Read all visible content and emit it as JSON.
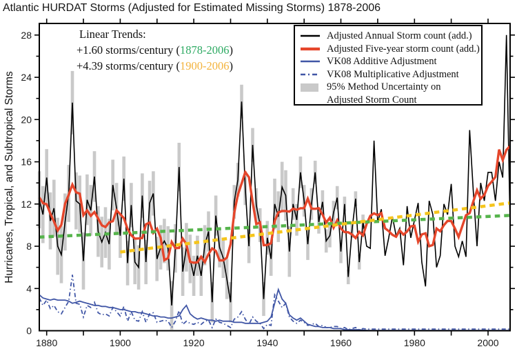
{
  "title": "Atlantic HURDAT Storms (Adjusted for Estimated Missing Storms) 1878-2006",
  "y_axis_label": "Hurricanes, Tropical, and Subtropical Storms",
  "annotation": {
    "heading": "Linear Trends:",
    "trends": [
      {
        "text": "+1.60 storms/century ",
        "open": "(",
        "range": "1878-2006",
        "close": ")",
        "range_color": "#2eaa63"
      },
      {
        "text": "+4.39 storms/century ",
        "open": "(",
        "range": "1900-2006",
        "close": ")",
        "range_color": "#f3b33d"
      }
    ]
  },
  "legend": {
    "items": [
      {
        "label": "Adjusted Annual Storm count (add.)",
        "style": "line",
        "color": "#000000"
      },
      {
        "label": "Adjusted Five-year storm count (add.)",
        "style": "line-thick",
        "color": "#e5462b"
      },
      {
        "label": "VK08 Additive Adjustment",
        "style": "line",
        "color": "#4056a6"
      },
      {
        "label": "VK08 Multiplicative Adjustment",
        "style": "line-dashed",
        "color": "#4056a6"
      },
      {
        "label": "95% Method Uncertainty on",
        "label2": "Adjusted Storm Count",
        "style": "box",
        "color": "#c9c9c9"
      }
    ]
  },
  "chart_data": {
    "type": "line",
    "title": "Atlantic HURDAT Storms (Adjusted for Estimated Missing Storms) 1878-2006",
    "xlabel": "",
    "ylabel": "Hurricanes, Tropical, and Subtropical Storms",
    "x_range": [
      1878,
      2006
    ],
    "ylim": [
      0,
      29.1
    ],
    "grid": false,
    "legend_position": "top-right-inside",
    "axes": {
      "x_ticks": [
        1880,
        1890,
        1900,
        1910,
        1920,
        1930,
        1940,
        1950,
        1960,
        1970,
        1980,
        1990,
        2000
      ],
      "x_tick_labels": [
        1880,
        1900,
        1920,
        1940,
        1960,
        1980,
        2000
      ],
      "y_tick_labels": [
        0,
        4,
        8,
        12,
        16,
        20,
        24,
        28
      ],
      "y_major_step": 4,
      "y_minor_step": 2
    },
    "colors": {
      "annual": "#000000",
      "five_year": "#e5462b",
      "vk08": "#4056a6",
      "trend_full": "#56b44c",
      "trend_1900": "#f5c51d",
      "uncertainty": "#c9c9c9"
    },
    "series": {
      "annual": [
        12.4,
        11.0,
        14.5,
        10.4,
        11.6,
        8.0,
        7.2,
        10.3,
        13.0,
        21.6,
        12.3,
        12.0,
        6.6,
        12.4,
        11.4,
        14.6,
        9.4,
        8.4,
        9.3,
        8.2,
        13.8,
        11.6,
        9.0,
        14.4,
        6.4,
        11.9,
        6.5,
        6.0,
        12.8,
        6.5,
        12.1,
        13.0,
        6.8,
        7.9,
        8.5,
        7.8,
        2.4,
        7.8,
        15.5,
        5.6,
        7.9,
        6.8,
        5.2,
        7.1,
        5.2,
        8.1,
        9.4,
        2.7,
        10.9,
        7.9,
        6.9,
        4.9,
        2.7,
        12.2,
        14.3,
        21.7,
        13.5,
        8.0,
        17.6,
        11.9,
        10.0,
        3.0,
        8.8,
        6.8,
        12.0,
        10.8,
        13.6,
        12.8,
        7.5,
        12.0,
        10.5,
        15.0,
        12.3,
        8.2,
        12.0,
        15.0,
        10.3,
        12.2,
        8.5,
        9.0,
        11.2,
        12.6,
        7.5,
        12.0,
        5.1,
        9.5,
        12.5,
        6.5,
        10.3,
        8.0,
        7.8,
        18.0,
        10.3,
        11.5,
        7.1,
        8.8,
        10.8,
        9.0,
        9.7,
        6.2,
        11.8,
        8.8,
        10.5,
        12.1,
        6.5,
        4.2,
        12.3,
        11.0,
        6.0,
        7.1,
        12.0,
        11.0,
        13.9,
        8.0,
        7.0,
        8.5,
        7.0,
        19.0,
        13.2,
        8.0,
        14.0,
        12.3,
        15.0,
        15.0,
        12.3,
        16.0,
        14.5,
        28.0,
        10.0
      ],
      "five_year_note": "centered 5-year running mean of annual (computed)",
      "vk08_additive": [
        3.4,
        3.1,
        3.0,
        2.9,
        3.0,
        2.9,
        2.9,
        2.9,
        2.8,
        2.6,
        2.7,
        2.8,
        2.7,
        2.6,
        2.5,
        2.4,
        2.4,
        2.3,
        2.3,
        2.2,
        2.2,
        2.1,
        2.0,
        2.0,
        1.9,
        1.8,
        1.8,
        1.7,
        1.7,
        1.6,
        1.5,
        1.4,
        1.4,
        1.3,
        1.3,
        1.2,
        1.2,
        1.3,
        1.4,
        2.0,
        2.4,
        1.6,
        1.3,
        1.1,
        1.2,
        1.1,
        1.0,
        1.0,
        0.9,
        1.0,
        0.9,
        0.9,
        0.9,
        0.8,
        0.8,
        0.8,
        0.7,
        0.7,
        0.7,
        0.7,
        0.7,
        0.8,
        0.9,
        1.3,
        2.6,
        3.9,
        3.0,
        2.6,
        1.5,
        1.2,
        1.0,
        1.2,
        0.9,
        0.6,
        0.5,
        0.4,
        0.4,
        0.3,
        0.3,
        0.3,
        0.2,
        0.2,
        0.2,
        0.1,
        0.1,
        0.1,
        0.1,
        0.1,
        0.05,
        0.03,
        0.02,
        0.02,
        0.02,
        0.02,
        0.02,
        0.02,
        0.02,
        0.02,
        0.02,
        0.02,
        0.02,
        0.02,
        0.02,
        0.02,
        0.02,
        0.02,
        0.02,
        0.02,
        0.02,
        0.02,
        0.02,
        0.02,
        0.02,
        0.02,
        0.02,
        0.02,
        0.02,
        0.02,
        0.02,
        0.02,
        0.02,
        0.02,
        0.02,
        0.02,
        0.02,
        0.02,
        0.02,
        0.02,
        0.02
      ],
      "vk08_multiplicative": [
        3.1,
        2.4,
        2.9,
        2.1,
        2.4,
        1.8,
        1.6,
        2.2,
        2.8,
        5.3,
        2.6,
        2.5,
        1.3,
        2.4,
        2.2,
        2.7,
        1.7,
        1.5,
        1.6,
        1.4,
        2.2,
        1.8,
        1.4,
        2.3,
        0.9,
        1.8,
        1.0,
        0.9,
        1.8,
        0.8,
        1.6,
        1.7,
        0.8,
        0.9,
        1.0,
        0.9,
        0.3,
        0.9,
        1.9,
        0.6,
        0.9,
        0.7,
        0.6,
        0.8,
        0.6,
        0.9,
        1.0,
        0.3,
        1.1,
        0.8,
        0.7,
        0.5,
        0.3,
        1.1,
        1.3,
        1.8,
        1.1,
        0.6,
        1.3,
        0.9,
        0.7,
        0.2,
        0.6,
        0.5,
        3.4,
        2.8,
        2.2,
        2.6,
        1.3,
        0.9,
        0.7,
        1.0,
        0.8,
        0.5,
        0.6,
        0.7,
        0.4,
        0.5,
        0.3,
        0.3,
        0.4,
        0.4,
        0.2,
        0.3,
        0.1,
        0.2,
        0.3,
        0.1,
        0.2,
        0.15,
        0.15,
        0.15,
        0.15,
        0.15,
        0.15,
        0.15,
        0.15,
        0.15,
        0.15,
        0.15,
        0.15,
        0.15,
        0.15,
        0.15,
        0.15,
        0.15,
        0.15,
        0.15,
        0.15,
        0.15,
        0.15,
        0.15,
        0.15,
        0.15,
        0.15,
        0.15,
        0.15,
        0.15,
        0.15,
        0.15,
        0.15,
        0.15,
        0.15,
        0.15,
        0.15,
        0.15,
        0.15,
        0.15,
        0.15
      ],
      "uncertainty_halfwidth": [
        2.7,
        2.7,
        2.7,
        2.7,
        2.7,
        2.7,
        2.7,
        2.7,
        2.7,
        3.0,
        2.7,
        2.7,
        2.7,
        2.4,
        2.4,
        2.4,
        2.4,
        2.4,
        2.4,
        2.4,
        2.4,
        2.4,
        2.1,
        2.1,
        2.1,
        2.1,
        2.1,
        2.1,
        2.1,
        2.1,
        2.1,
        2.1,
        2.1,
        2.1,
        2.1,
        2.1,
        2.3,
        2.3,
        2.3,
        2.3,
        2.3,
        2.3,
        1.9,
        1.9,
        1.9,
        1.9,
        1.9,
        1.9,
        1.9,
        1.9,
        1.9,
        1.9,
        1.9,
        1.6,
        1.6,
        1.6,
        1.6,
        1.6,
        1.6,
        1.6,
        1.6,
        1.6,
        1.6,
        1.6,
        2.4,
        2.4,
        2.4,
        2.4,
        2.4,
        1.5,
        1.5,
        1.5,
        1.5,
        1.5,
        1.5,
        1.1,
        1.1,
        1.1,
        1.1,
        1.1,
        1.1,
        1.1,
        1.1,
        0.7,
        0.7,
        0.7,
        0.7,
        0.7,
        0.7,
        0,
        0,
        0,
        0,
        0,
        0,
        0,
        0,
        0,
        0,
        0,
        0,
        0,
        0,
        0,
        0,
        0,
        0,
        0,
        0,
        0,
        0,
        0,
        0,
        0,
        0,
        0,
        0,
        0,
        0,
        0,
        0,
        0,
        0,
        0,
        0,
        0,
        0,
        0,
        0
      ]
    },
    "trends": [
      {
        "label": "+1.60 storms/century (1878-2006)",
        "rate_per_century": 1.6,
        "x": [
          1878,
          2006
        ],
        "y": [
          8.87,
          10.92
        ],
        "color": "#56b44c"
      },
      {
        "label": "+4.39 storms/century (1900-2006)",
        "rate_per_century": 4.39,
        "x": [
          1900,
          2006
        ],
        "y": [
          7.45,
          12.1
        ],
        "color": "#f5c51d"
      }
    ]
  }
}
